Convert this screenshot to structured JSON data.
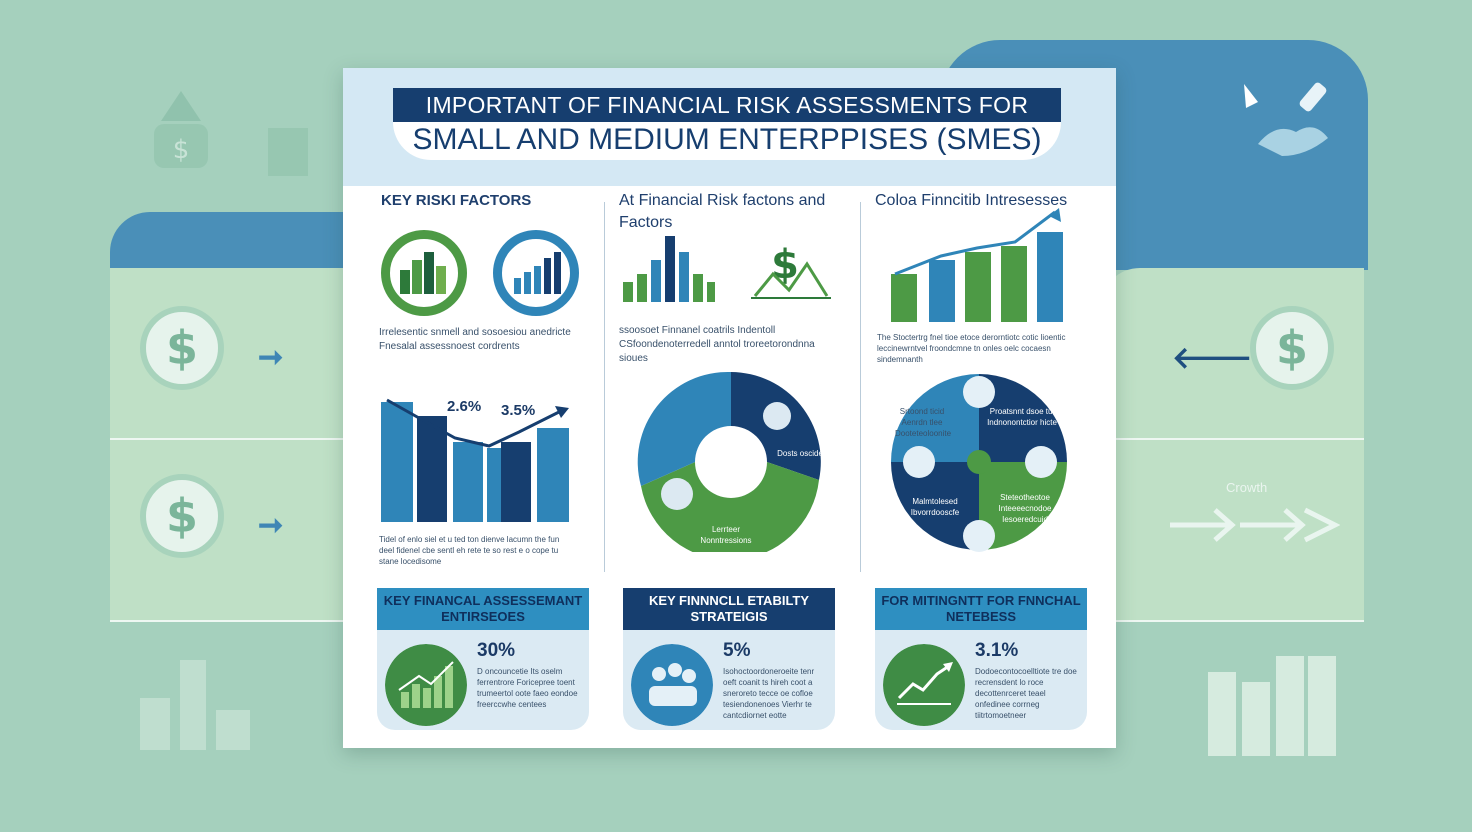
{
  "title": {
    "line1": "IMPORTANT OF FINANCIAL RISK ASSESSMENTS FOR",
    "line2": "SMALL AND MEDIUM ENTERPPISES (SMES)"
  },
  "columns": [
    {
      "heading": "KEY RISKI FACTORS",
      "caption": "Irrelesentic snmell and sosoesiou anedricte Fnesalal assessnoest cordrents",
      "stat1": "2.6%",
      "stat2": "3.5%",
      "note": "Tidel of enlo siel et u ted ton dienve lacumn the fun deel fidenel cbe sentl eh rete te so rest e o cope tu stane locedisome"
    },
    {
      "heading": "At Financial Risk factons and Factors",
      "caption": "ssoosoet Finnanel coatrils Indentoll CSfoondenoterredell anntol troreetorondnna sioues",
      "label1": "Dosts oscide",
      "label2": "Lerrteer Nonntressions"
    },
    {
      "heading": "Coloa Finncitib Intresesses",
      "caption": "The Stoctertrg fnel tioe etoce derorntiotc cotic lioentic leccinewrntvel froondcmne tn onles oelc cocaesn sindemnanth",
      "quad_labels": [
        "Srtoond ticid Aenrdn tlee Dooteteoloonite",
        "Proatsnnt dsoe tul Indnonontctior hicte",
        "Malmtolesed Ibvorrdooscfe",
        "Steteotheotoe Inteeeecnodoe Iesoeredcuid"
      ]
    }
  ],
  "cards": [
    {
      "heading": "KEY FINANCAL ASSESSEMANT ENTIRSEOES",
      "percent": "30%",
      "text": "D oncouncetie Its oselm ferrentrore Foricepree toent trumeertol oote faeo eondoe freerccwhe centees"
    },
    {
      "heading": "KEY FINNNCLL ETABILTY STRATEIGIS",
      "percent": "5%",
      "text": "Isohoctoordoneroeite tenr oeft coanit ts hireh coot a sneroreto tecce oe cofloe tesiendonenoes Vierhr te cantcdiornet eotte"
    },
    {
      "heading": "FOR  MITINGNTT FOR FNNCHAL NETEBESS",
      "percent": "3.1%",
      "text": "Dodoecontocoelltiote tre doe recrensdent lo roce decottenrceret teael onfedinee corrneg tiitrtomoetneer"
    }
  ],
  "side": {
    "growth": "Crowth"
  },
  "colors": {
    "navy": "#163e6f",
    "blue": "#2f85b8",
    "green": "#4d9a45",
    "mint_bg": "#a5d0bd"
  }
}
